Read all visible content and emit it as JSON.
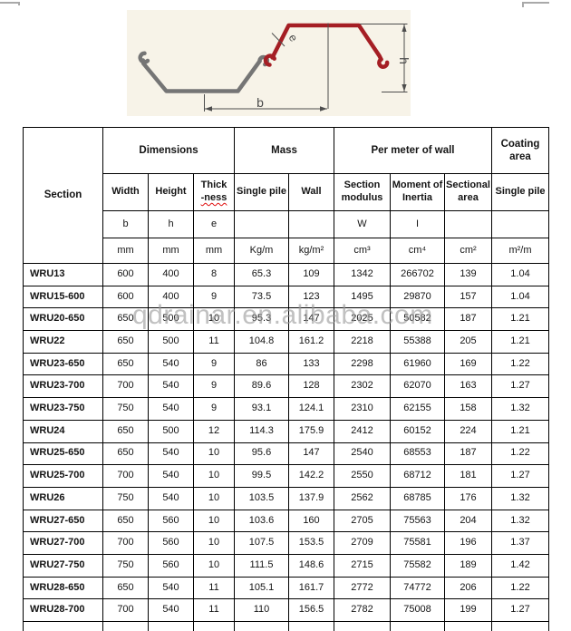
{
  "watermark": "qdrainar.en.alibaba.com",
  "diagram": {
    "labels": {
      "width": "b",
      "height": "h",
      "thickness": "e"
    },
    "colors": {
      "front_pile": "#a51e24",
      "back_pile": "#757575",
      "background": "#f7f3e8",
      "dimension_lines": "#4d4d4d"
    }
  },
  "table": {
    "groups": [
      {
        "label": "Section"
      },
      {
        "label": "Dimensions"
      },
      {
        "label": "Mass"
      },
      {
        "label": "Per meter of wall"
      },
      {
        "label": "Coating area"
      }
    ],
    "columns": [
      {
        "name": "Width",
        "symbol": "b",
        "unit": "mm"
      },
      {
        "name": "Height",
        "symbol": "h",
        "unit": "mm"
      },
      {
        "name_line1": "Thick",
        "name_line2": "-ness",
        "symbol": "e",
        "unit": "mm"
      },
      {
        "name": "Single pile",
        "symbol": "",
        "unit": "Kg/m"
      },
      {
        "name": "Wall",
        "symbol": "",
        "unit": "kg/m²"
      },
      {
        "name": "Section modulus",
        "symbol": "W",
        "unit": "cm³"
      },
      {
        "name": "Moment of Inertia",
        "symbol": "I",
        "unit": "cm⁴"
      },
      {
        "name": "Sectional area",
        "symbol": "",
        "unit": "cm²"
      },
      {
        "name": "Single pile",
        "symbol": "",
        "unit": "m²/m"
      }
    ],
    "rows": [
      {
        "section": "WRU13",
        "values": [
          "600",
          "400",
          "8",
          "65.3",
          "109",
          "1342",
          "266702",
          "139",
          "1.04"
        ]
      },
      {
        "section": "WRU15-600",
        "values": [
          "600",
          "400",
          "9",
          "73.5",
          "123",
          "1495",
          "29870",
          "157",
          "1.04"
        ]
      },
      {
        "section": "WRU20-650",
        "values": [
          "650",
          "500",
          "10",
          "95.3",
          "147",
          "2025",
          "50582",
          "187",
          "1.21"
        ]
      },
      {
        "section": "WRU22",
        "values": [
          "650",
          "500",
          "11",
          "104.8",
          "161.2",
          "2218",
          "55388",
          "205",
          "1.21"
        ]
      },
      {
        "section": "WRU23-650",
        "values": [
          "650",
          "540",
          "9",
          "86",
          "133",
          "2298",
          "61960",
          "169",
          "1.22"
        ]
      },
      {
        "section": "WRU23-700",
        "values": [
          "700",
          "540",
          "9",
          "89.6",
          "128",
          "2302",
          "62070",
          "163",
          "1.27"
        ]
      },
      {
        "section": "WRU23-750",
        "values": [
          "750",
          "540",
          "9",
          "93.1",
          "124.1",
          "2310",
          "62155",
          "158",
          "1.32"
        ]
      },
      {
        "section": "WRU24",
        "values": [
          "650",
          "500",
          "12",
          "114.3",
          "175.9",
          "2412",
          "60152",
          "224",
          "1.21"
        ]
      },
      {
        "section": "WRU25-650",
        "values": [
          "650",
          "540",
          "10",
          "95.6",
          "147",
          "2540",
          "68553",
          "187",
          "1.22"
        ]
      },
      {
        "section": "WRU25-700",
        "values": [
          "700",
          "540",
          "10",
          "99.5",
          "142.2",
          "2550",
          "68712",
          "181",
          "1.27"
        ]
      },
      {
        "section": "WRU26",
        "values": [
          "750",
          "540",
          "10",
          "103.5",
          "137.9",
          "2562",
          "68785",
          "176",
          "1.32"
        ]
      },
      {
        "section": "WRU27-650",
        "values": [
          "650",
          "560",
          "10",
          "103.6",
          "160",
          "2705",
          "75563",
          "204",
          "1.32"
        ]
      },
      {
        "section": "WRU27-700",
        "values": [
          "700",
          "560",
          "10",
          "107.5",
          "153.5",
          "2709",
          "75581",
          "196",
          "1.37"
        ]
      },
      {
        "section": "WRU27-750",
        "values": [
          "750",
          "560",
          "10",
          "111.5",
          "148.6",
          "2715",
          "75582",
          "189",
          "1.42"
        ]
      },
      {
        "section": "WRU28-650",
        "values": [
          "650",
          "540",
          "11",
          "105.1",
          "161.7",
          "2772",
          "74772",
          "206",
          "1.22"
        ]
      },
      {
        "section": "WRU28-700",
        "values": [
          "700",
          "540",
          "11",
          "110",
          "156.5",
          "2782",
          "75008",
          "199",
          "1.27"
        ]
      }
    ]
  }
}
